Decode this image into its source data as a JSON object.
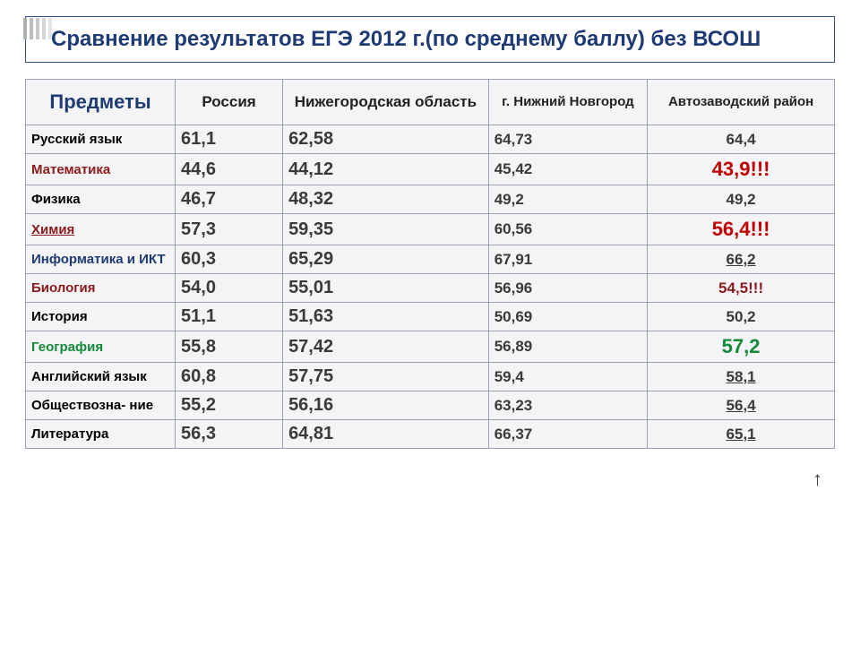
{
  "title": "Сравнение результатов ЕГЭ 2012 г.(по среднему баллу) без ВСОШ",
  "columns": {
    "subjects": "Предметы",
    "russia": "Россия",
    "region": "Нижегородская область",
    "city": "г. Нижний Новгород",
    "district": "Автозаводский район"
  },
  "rows": [
    {
      "subject": "Русский язык",
      "subj_cls": "",
      "russia": "61,1",
      "region": "62,58",
      "city": "64,73",
      "district": "64,4",
      "d_cls": ""
    },
    {
      "subject": "Математика",
      "subj_cls": "darkred",
      "russia": "44,6",
      "region": "44,12",
      "city": "45,42",
      "district": "43,9!!!",
      "d_cls": "red big"
    },
    {
      "subject": "Физика",
      "subj_cls": "",
      "russia": "46,7",
      "region": "48,32",
      "city": "49,2",
      "district": "49,2",
      "d_cls": ""
    },
    {
      "subject": "Химия",
      "subj_cls": "darkred underline",
      "russia": "57,3",
      "region": "59,35",
      "city": "60,56",
      "district": "56,4!!!",
      "d_cls": "red big"
    },
    {
      "subject": "Информатика и ИКТ",
      "subj_cls": "blue",
      "russia": "60,3",
      "region": "65,29",
      "city": "67,91",
      "district": "66,2",
      "d_cls": "underline"
    },
    {
      "subject": "Биология",
      "subj_cls": "darkred",
      "russia": "54,0",
      "region": "55,01",
      "city": "56,96",
      "district": "54,5!!!",
      "d_cls": "darkred"
    },
    {
      "subject": "История",
      "subj_cls": "",
      "russia": "51,1",
      "region": "51,63",
      "city": "50,69",
      "district": "50,2",
      "d_cls": ""
    },
    {
      "subject": "География",
      "subj_cls": "green",
      "russia": "55,8",
      "region": "57,42",
      "city": "56,89",
      "district": "57,2",
      "d_cls": "green big"
    },
    {
      "subject": "Английский язык",
      "subj_cls": "",
      "russia": "60,8",
      "region": "57,75",
      "city": "59,4",
      "district": "58,1",
      "d_cls": "underline"
    },
    {
      "subject": "Обществозна- ние",
      "subj_cls": "",
      "russia": "55,2",
      "region": "56,16",
      "city": "63,23",
      "district": "56,4",
      "d_cls": "underline"
    },
    {
      "subject": "Литература",
      "subj_cls": "",
      "russia": "56,3",
      "region": "64,81",
      "city": "66,37",
      "district": "65,1",
      "d_cls": "underline"
    }
  ],
  "arrow_up": "↑",
  "colors": {
    "title": "#1f3b74",
    "border": "#9aa3b5",
    "red": "#c00000",
    "darkred": "#8b1a1a",
    "green": "#138a3a",
    "blue": "#1f3b74",
    "cell_bg": "#f4f4f6"
  }
}
